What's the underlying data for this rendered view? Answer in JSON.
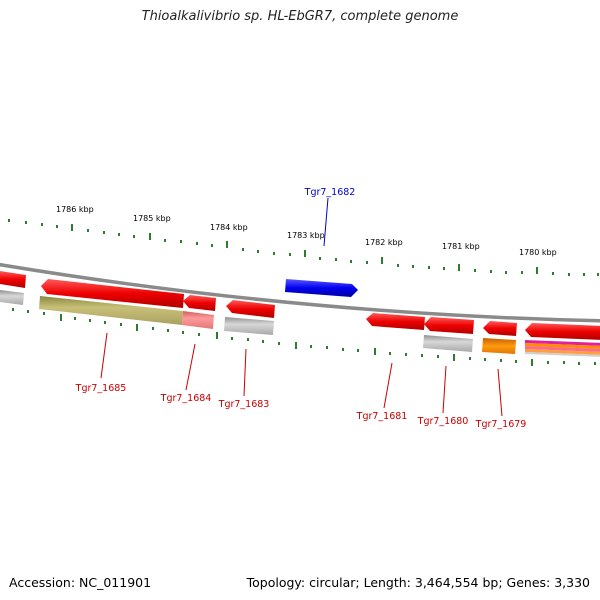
{
  "title": "Thioalkalivibrio sp. HL-EbGR7, complete genome",
  "footer": {
    "accession": "Accession: NC_011901",
    "summary": "Topology: circular; Length: 3,464,554 bp; Genes: 3,330"
  },
  "scale_labels": [
    "1786 kbp",
    "1785 kbp",
    "1784 kbp",
    "1783 kbp",
    "1782 kbp",
    "1781 kbp",
    "1780 kbp"
  ],
  "gene_labels": [
    {
      "id": "Tgr7_1682",
      "color": "#0000cc"
    },
    {
      "id": "Tgr7_1685",
      "color": "#cc0000"
    },
    {
      "id": "Tgr7_1684",
      "color": "#cc0000"
    },
    {
      "id": "Tgr7_1683",
      "color": "#cc0000"
    },
    {
      "id": "Tgr7_1681",
      "color": "#cc0000"
    },
    {
      "id": "Tgr7_1680",
      "color": "#cc0000"
    },
    {
      "id": "Tgr7_1679",
      "color": "#cc0000"
    }
  ],
  "colors": {
    "backbone": "#888888",
    "ticks": "#2e7d2e",
    "gene_forward": "#0000ee",
    "gene_reverse": "#ee0000",
    "grey_feature": "#b0b0b0",
    "olive_feature": "#b8b060",
    "orange_feature": "#ff8c00",
    "magenta_feature": "#e020a0"
  }
}
